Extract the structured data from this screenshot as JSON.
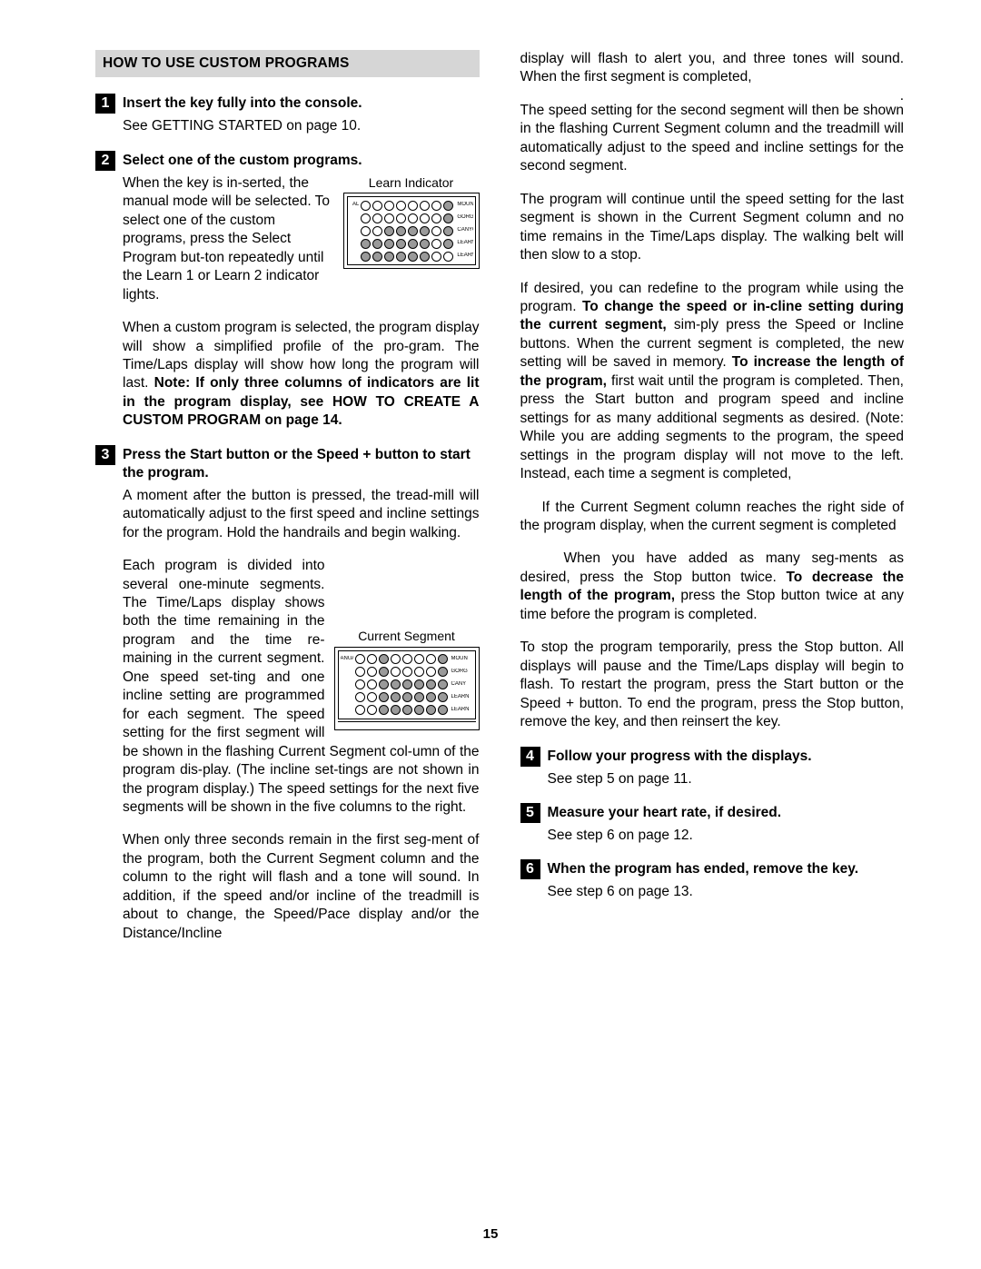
{
  "heading": "HOW TO USE CUSTOM PROGRAMS",
  "page_number": "15",
  "steps": {
    "s1": {
      "num": "1",
      "title": "Insert the key fully into the console."
    },
    "s2": {
      "num": "2",
      "title": "Select one of the custom programs."
    },
    "s3": {
      "num": "3",
      "title": "Press the Start button or the Speed + button to start the program."
    },
    "s4": {
      "num": "4",
      "title": "Follow your progress with the displays."
    },
    "s5": {
      "num": "5",
      "title": "Measure your heart rate, if desired."
    },
    "s6": {
      "num": "6",
      "title": "When the program has ended, remove the key."
    }
  },
  "left": {
    "p1": "See GETTING STARTED on page 10.",
    "p2a": "When the key is in-serted, the manual mode will be selected. To select one of the custom programs, press the Select Program but-ton repeatedly until the Learn 1 or Learn 2 indicator lights.",
    "p2b_pre": "When a custom program is selected, the program display will show a simplified profile of the pro-gram. The Time/Laps display will show how long the program will last. ",
    "p2b_bold": "Note: If only three columns of indicators are lit in the program display, see HOW TO CREATE A CUSTOM PROGRAM on page 14.",
    "p3a": "A moment after the button is pressed, the tread-mill will automatically adjust to the first speed and incline settings for the program. Hold the handrails and begin walking.",
    "p3b": "Each program is divided into several one-minute segments. The Time/Laps display shows both the time remaining in the program and the time re-maining in the current segment. One speed set-ting and one incline setting are programmed for each segment. The speed setting for the first segment will be shown in the flashing Current Segment col-umn of the program dis-play. (The incline set-tings are not shown in the program display.) The speed settings for the next five segments will be shown in the five columns to the right.",
    "p3c": "When only three seconds remain in the first seg-ment of the program, both the Current Segment column and the column to the right will flash and a tone will sound. In addition, if the speed and/or incline of the treadmill is about to change, the Speed/Pace display and/or the Distance/Incline"
  },
  "right": {
    "r1": "display will flash to alert you, and three tones will sound. When the first segment is completed,",
    "r1dot": ".",
    "r2": "The speed setting for the second segment will then be shown in the flashing Current Segment column and the treadmill will automatically adjust to the speed and incline settings for the second segment.",
    "r3": "The program will continue until the speed setting for the last segment is shown in the Current Segment column and no time remains in the Time/Laps display. The walking belt will then slow to a stop.",
    "r4_pre": "If desired, you can redefine to the program while using the program. ",
    "r4_b1": "To change the speed or in-cline setting during the current segment,",
    "r4_mid": " sim-ply press the Speed or Incline buttons. When the current segment is completed, the new setting will be saved in memory. ",
    "r4_b2": "To increase the length of the program,",
    "r4_post": " first wait until the program is completed. Then, press the Start button and program speed and incline settings for as many additional segments as desired. (Note: While you are adding segments to the program, the speed settings in the program display will not move to the left. Instead, each time a segment is completed,",
    "r5": "If the Current Segment column reaches the right side of the program display, when the current segment is completed",
    "r6_pre": "When you have added as many seg-ments as desired, press the Stop button twice. ",
    "r6_b": "To decrease the length of the program,",
    "r6_post": " press the Stop button twice at any time before the program is completed.",
    "r7": "To stop the program temporarily, press the Stop button. All displays will pause and the Time/Laps display will begin to flash. To restart the program, press the Start button or the Speed + button. To end the program, press the Stop button, remove the key, and then reinsert the key.",
    "p4": "See step 5 on page 11.",
    "p5": "See step 6 on page 12.",
    "p6": "See step 6 on page 13."
  },
  "fig1": {
    "caption": "Learn Indicator",
    "row_labels_left": [
      "AL",
      "",
      "",
      "",
      ""
    ],
    "row_labels_right": [
      "MOUNTAI",
      "GORGE TR",
      "CANYON R",
      "LEARN 1",
      "LEARN 2"
    ],
    "grid": [
      [
        0,
        0,
        0,
        0,
        0,
        0,
        0,
        1
      ],
      [
        0,
        0,
        0,
        0,
        0,
        0,
        0,
        1
      ],
      [
        0,
        0,
        1,
        1,
        1,
        1,
        0,
        1
      ],
      [
        1,
        1,
        1,
        1,
        1,
        1,
        0,
        1
      ],
      [
        1,
        1,
        1,
        1,
        1,
        1,
        0,
        0
      ]
    ]
  },
  "fig2": {
    "caption": "Current Segment",
    "row_labels_left": [
      "ANUAL",
      "",
      "",
      "",
      ""
    ],
    "row_labels_right": [
      "MOUN",
      "GORG",
      "CANY",
      "LEARN",
      "LEARN"
    ],
    "grid": [
      [
        0,
        0,
        1,
        0,
        0,
        0,
        0,
        1
      ],
      [
        0,
        0,
        1,
        0,
        0,
        0,
        0,
        1
      ],
      [
        0,
        0,
        1,
        1,
        1,
        1,
        1,
        1
      ],
      [
        0,
        0,
        1,
        1,
        1,
        1,
        1,
        1
      ],
      [
        0,
        0,
        1,
        1,
        1,
        1,
        1,
        1
      ]
    ]
  }
}
